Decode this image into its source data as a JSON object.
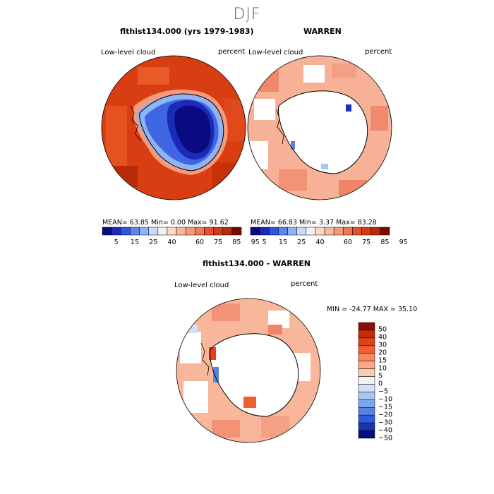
{
  "figure": {
    "season": "DJF",
    "panels": [
      {
        "title": "flthist134.000 (yrs 1979-1983)",
        "variable": "Low-level cloud",
        "units": "percent",
        "stats": {
          "mean": "63.85",
          "min": "0.00",
          "max": "91.62"
        },
        "stats_text": "MEAN=   63.85   Min=     0.00    Max=   91.62"
      },
      {
        "title": "WARREN",
        "variable": "Low-level cloud",
        "units": "percent",
        "stats": {
          "mean": "66.83",
          "min": "3.37",
          "max": "83.28"
        },
        "stats_text": "MEAN=   66.83   Min=     3.37    Max=   83.28"
      },
      {
        "title": "flthist134.000 - WARREN",
        "variable": "Low-level cloud",
        "units": "percent",
        "stats": {
          "min": "-24.77",
          "max": "35.10"
        },
        "stats_text": "MIN = -24.77 MAX =   35.10"
      }
    ],
    "colorbar_labels": [
      "5",
      "15",
      "25",
      "40",
      "60",
      "75",
      "85",
      "95"
    ],
    "colorbar_colors": [
      "#0a0a82",
      "#1a2bb8",
      "#2f55e0",
      "#5b86ee",
      "#8fb3f5",
      "#c8dcf8",
      "#f2f2f2",
      "#fbd9c4",
      "#f9b89c",
      "#f59a7a",
      "#f07a55",
      "#e5502a",
      "#d23a12",
      "#b82a0a",
      "#7a0a00"
    ],
    "diff_colorbar_labels": [
      "50",
      "40",
      "30",
      "20",
      "15",
      "10",
      "5",
      "0",
      "−5",
      "−10",
      "−15",
      "−20",
      "−30",
      "−40",
      "−50"
    ],
    "diff_colorbar_colors": [
      "#8a0f00",
      "#c72a0a",
      "#e5401a",
      "#f0602f",
      "#f58a62",
      "#f8a887",
      "#fbc9b0",
      "#f2f2f2",
      "#cfe0f8",
      "#a9c5f2",
      "#7ea6ec",
      "#5583e4",
      "#2f5bd8",
      "#1a34b8",
      "#0a0a82"
    ]
  }
}
